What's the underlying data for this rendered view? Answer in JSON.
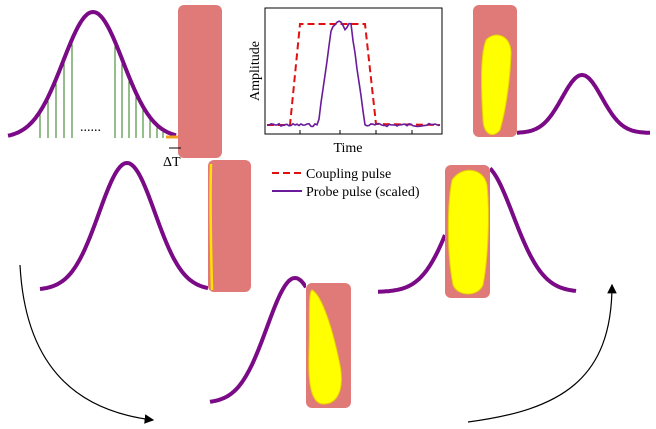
{
  "delta_label": "ΔT",
  "dots": "......",
  "inset": {
    "y_label": "Amplitude",
    "x_label": "Time"
  },
  "legend": {
    "entries": [
      "Coupling pulse",
      "Probe pulse (scaled)"
    ]
  }
}
